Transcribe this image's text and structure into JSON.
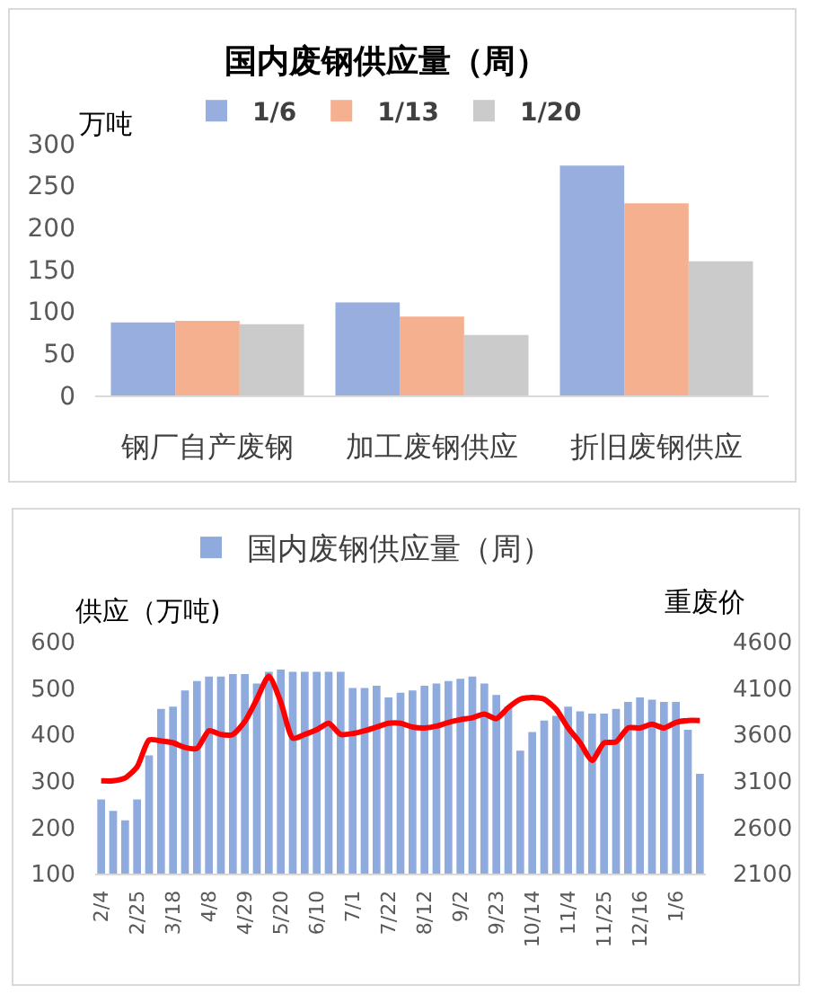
{
  "chart_data": [
    {
      "type": "bar",
      "title": "国内废钢供应量（周）",
      "ylabel": "万吨",
      "categories": [
        "钢厂自产废钢",
        "加工废钢供应",
        "折旧废钢供应"
      ],
      "series": [
        {
          "name": "1/6",
          "color": "#98aede",
          "values": [
            87,
            111,
            274
          ]
        },
        {
          "name": "1/13",
          "color": "#f5b08f",
          "values": [
            89,
            94,
            229
          ]
        },
        {
          "name": "1/20",
          "color": "#cbcbcb",
          "values": [
            85,
            72,
            160
          ]
        }
      ],
      "ylim": [
        0,
        300
      ],
      "yticks": [
        0,
        50,
        100,
        150,
        200,
        250,
        300
      ],
      "legend": "top"
    },
    {
      "type": "bar",
      "ylabel": "供应（万吨)",
      "y2label": "重废价",
      "categories": [
        "2/4",
        null,
        null,
        "2/25",
        null,
        null,
        "3/18",
        null,
        null,
        "4/8",
        null,
        null,
        "4/29",
        null,
        null,
        "5/20",
        null,
        null,
        "6/10",
        null,
        null,
        "7/1",
        null,
        null,
        "7/22",
        null,
        null,
        "8/12",
        null,
        null,
        "9/2",
        null,
        null,
        "9/23",
        null,
        null,
        "10/14",
        null,
        null,
        "11/4",
        null,
        null,
        "11/25",
        null,
        null,
        "12/16",
        null,
        null,
        "1/6",
        null,
        null
      ],
      "series": [
        {
          "name": "国内废钢供应量（周）",
          "color": "#8faadc",
          "values": [
            260,
            235,
            215,
            260,
            355,
            455,
            460,
            495,
            515,
            525,
            525,
            530,
            530,
            510,
            535,
            540,
            535,
            535,
            535,
            535,
            535,
            500,
            500,
            505,
            480,
            490,
            495,
            505,
            510,
            515,
            520,
            525,
            510,
            485,
            460,
            365,
            405,
            430,
            440,
            460,
            450,
            445,
            445,
            455,
            470,
            480,
            475,
            470,
            470,
            410,
            315
          ]
        },
        {
          "type": "line",
          "axis": "y2",
          "color": "#ff0000",
          "values": [
            3100,
            3100,
            3130,
            3250,
            3540,
            3530,
            3510,
            3460,
            3450,
            3640,
            3600,
            3600,
            3740,
            3980,
            4230,
            3950,
            3560,
            3600,
            3650,
            3720,
            3600,
            3610,
            3640,
            3680,
            3720,
            3720,
            3680,
            3670,
            3690,
            3730,
            3760,
            3780,
            3820,
            3770,
            3890,
            3980,
            4000,
            3980,
            3870,
            3670,
            3510,
            3320,
            3510,
            3520,
            3670,
            3670,
            3710,
            3670,
            3730,
            3750,
            3750
          ]
        }
      ],
      "ylim": [
        100,
        600
      ],
      "yticks": [
        100,
        200,
        300,
        400,
        500,
        600
      ],
      "y2lim": [
        2100,
        4600
      ],
      "y2ticks": [
        2100,
        2600,
        3100,
        3600,
        4100,
        4600
      ],
      "legend": "top"
    }
  ]
}
